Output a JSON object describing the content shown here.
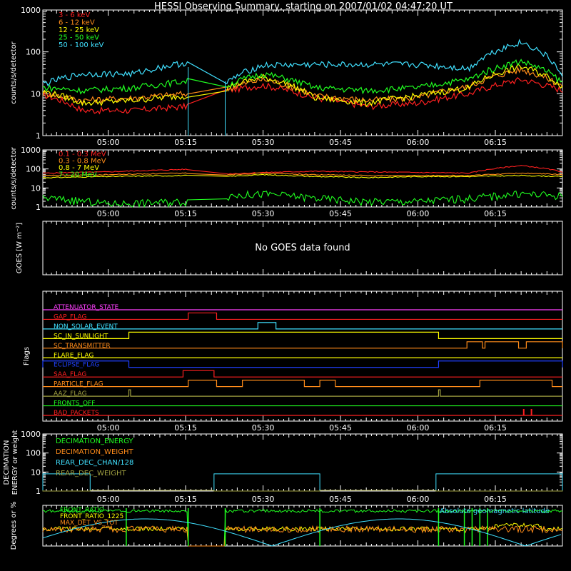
{
  "title": "HESSI Observing Summary, starting on 2007/01/02 04:47:20 UT",
  "time_ticks": [
    "05:00",
    "05:15",
    "05:30",
    "05:45",
    "06:00",
    "06:15"
  ],
  "no_goes_text": "No GOES data found",
  "colors": {
    "red": "#ff2020",
    "orange": "#ff8c1a",
    "yellow": "#ffff00",
    "green": "#20ff20",
    "cyan": "#40e0ff",
    "magenta": "#ff40ff",
    "blue": "#2040ff",
    "olive": "#a0a040",
    "white": "#ffffff"
  },
  "chart_data": [
    {
      "panel": "lightcurve-low",
      "type": "line",
      "ylabel": "counts/s/detector",
      "yscale": "log",
      "ylim": [
        1,
        1000
      ],
      "yticks": [
        "1",
        "10",
        "100",
        "1000"
      ],
      "xlim": [
        "04:47:20",
        "06:28:00"
      ],
      "grid": false,
      "legend": "top-left",
      "series": [
        {
          "name": "3 - 6 keV",
          "color": "#ff2020",
          "points": [
            [
              "04:48",
              9
            ],
            [
              "04:55",
              4
            ],
            [
              "05:05",
              4
            ],
            [
              "05:15",
              5
            ],
            [
              "05:23",
              12
            ],
            [
              "05:30",
              16
            ],
            [
              "05:40",
              8
            ],
            [
              "05:50",
              5
            ],
            [
              "06:00",
              6
            ],
            [
              "06:10",
              10
            ],
            [
              "06:20",
              22
            ],
            [
              "06:28",
              12
            ]
          ]
        },
        {
          "name": "6 - 12 keV",
          "color": "#ff8c1a",
          "points": [
            [
              "04:48",
              10
            ],
            [
              "04:55",
              7
            ],
            [
              "05:05",
              8
            ],
            [
              "05:15",
              10
            ],
            [
              "05:23",
              13
            ],
            [
              "05:30",
              22
            ],
            [
              "05:40",
              9
            ],
            [
              "05:50",
              7
            ],
            [
              "06:00",
              8
            ],
            [
              "06:10",
              15
            ],
            [
              "06:20",
              38
            ],
            [
              "06:28",
              15
            ]
          ]
        },
        {
          "name": "12 - 25 keV",
          "color": "#ffff00",
          "points": [
            [
              "04:48",
              11
            ],
            [
              "04:55",
              6
            ],
            [
              "05:05",
              7
            ],
            [
              "05:15",
              9
            ],
            [
              "05:23",
              14
            ],
            [
              "05:30",
              25
            ],
            [
              "05:40",
              8
            ],
            [
              "05:50",
              6
            ],
            [
              "06:00",
              9
            ],
            [
              "06:10",
              14
            ],
            [
              "06:20",
              45
            ],
            [
              "06:28",
              15
            ]
          ]
        },
        {
          "name": "25 - 50 keV",
          "color": "#20ff20",
          "points": [
            [
              "04:48",
              14
            ],
            [
              "04:55",
              12
            ],
            [
              "05:05",
              14
            ],
            [
              "05:15",
              20
            ],
            [
              "05:23",
              16
            ],
            [
              "05:30",
              30
            ],
            [
              "05:40",
              14
            ],
            [
              "05:50",
              12
            ],
            [
              "06:00",
              14
            ],
            [
              "06:10",
              22
            ],
            [
              "06:20",
              60
            ],
            [
              "06:28",
              18
            ]
          ]
        },
        {
          "name": "50 - 100 keV",
          "color": "#40e0ff",
          "points": [
            [
              "04:48",
              18
            ],
            [
              "04:55",
              30
            ],
            [
              "05:05",
              30
            ],
            [
              "05:15",
              55
            ],
            [
              "05:23",
              18
            ],
            [
              "05:30",
              48
            ],
            [
              "05:40",
              50
            ],
            [
              "05:50",
              50
            ],
            [
              "06:00",
              50
            ],
            [
              "06:10",
              40
            ],
            [
              "06:20",
              170
            ],
            [
              "06:28",
              22
            ]
          ]
        }
      ]
    },
    {
      "panel": "lightcurve-high",
      "type": "line",
      "ylabel": "counts/s/detector",
      "yscale": "log",
      "ylim": [
        1,
        1000
      ],
      "yticks": [
        "1",
        "10",
        "100",
        "1000"
      ],
      "legend": "top-left",
      "series": [
        {
          "name": "0.1 - 0.3 MeV",
          "color": "#ff2020",
          "points": [
            [
              "04:48",
              60
            ],
            [
              "05:00",
              70
            ],
            [
              "05:15",
              95
            ],
            [
              "05:23",
              55
            ],
            [
              "05:30",
              65
            ],
            [
              "05:40",
              75
            ],
            [
              "05:50",
              70
            ],
            [
              "06:00",
              65
            ],
            [
              "06:10",
              60
            ],
            [
              "06:20",
              150
            ],
            [
              "06:28",
              70
            ]
          ]
        },
        {
          "name": "0.3 - 0.8 MeV",
          "color": "#ff8c1a",
          "points": [
            [
              "04:48",
              45
            ],
            [
              "05:00",
              50
            ],
            [
              "05:15",
              60
            ],
            [
              "05:23",
              50
            ],
            [
              "05:30",
              60
            ],
            [
              "05:40",
              50
            ],
            [
              "05:50",
              45
            ],
            [
              "06:00",
              45
            ],
            [
              "06:10",
              45
            ],
            [
              "06:20",
              60
            ],
            [
              "06:28",
              50
            ]
          ]
        },
        {
          "name": "0.8 - 7 MeV",
          "color": "#ffff00",
          "points": [
            [
              "04:48",
              35
            ],
            [
              "05:00",
              40
            ],
            [
              "05:15",
              45
            ],
            [
              "05:23",
              40
            ],
            [
              "05:30",
              50
            ],
            [
              "05:40",
              40
            ],
            [
              "05:50",
              35
            ],
            [
              "06:00",
              40
            ],
            [
              "06:10",
              40
            ],
            [
              "06:20",
              45
            ],
            [
              "06:28",
              40
            ]
          ]
        },
        {
          "name": "7 - 20 MeV",
          "color": "#20ff20",
          "points": [
            [
              "04:48",
              3
            ],
            [
              "05:00",
              1.5
            ],
            [
              "05:15",
              2
            ],
            [
              "05:23",
              4
            ],
            [
              "05:30",
              5
            ],
            [
              "05:40",
              3
            ],
            [
              "05:50",
              2
            ],
            [
              "06:00",
              2
            ],
            [
              "06:10",
              3
            ],
            [
              "06:20",
              5
            ],
            [
              "06:28",
              4
            ]
          ]
        }
      ]
    },
    {
      "panel": "goes",
      "type": "line",
      "ylabel": "GOES [W m⁻²]",
      "series": []
    },
    {
      "panel": "flags",
      "type": "line",
      "ylabel": "Flags",
      "series": [
        {
          "name": "ATTENUATOR_STATE",
          "color": "#ff40ff",
          "segments": []
        },
        {
          "name": "GAP_FLAG",
          "color": "#ff2020",
          "segments": [
            [
              "05:15:30",
              "05:21:00"
            ]
          ]
        },
        {
          "name": "NON_SOLAR_EVENT",
          "color": "#40e0ff",
          "segments": [
            [
              "05:29:00",
              "05:32:30"
            ]
          ]
        },
        {
          "name": "SC_IN_SUNLIGHT",
          "color": "#ffff00",
          "segments": [
            [
              "05:04:00",
              "06:04:00"
            ]
          ]
        },
        {
          "name": "SC_TRANSMITTER",
          "color": "#ff8c1a",
          "segments": [
            [
              "06:09:30",
              "06:12:30"
            ],
            [
              "06:13:00",
              "06:19:30"
            ],
            [
              "06:21:00",
              "06:28:00"
            ]
          ]
        },
        {
          "name": "FLARE_FLAG",
          "color": "#ffff00",
          "segments": []
        },
        {
          "name": "ECLIPSE_FLAG",
          "color": "#2040ff",
          "segments": [
            [
              "04:47:20",
              "05:04:00"
            ],
            [
              "06:04:00",
              "06:28:00"
            ]
          ]
        },
        {
          "name": "SAA_FLAG",
          "color": "#ff2020",
          "segments": [
            [
              "05:14:30",
              "05:20:30"
            ]
          ]
        },
        {
          "name": "PARTICLE_FLAG",
          "color": "#ff8c1a",
          "segments": [
            [
              "05:15:30",
              "05:21:00"
            ],
            [
              "05:26:00",
              "05:38:00"
            ],
            [
              "05:41:00",
              "05:44:00"
            ],
            [
              "06:12:00",
              "06:26:00"
            ]
          ]
        },
        {
          "name": "AAZ_FLAG",
          "color": "#a0a040",
          "segments": [
            [
              "05:04:00",
              "05:04:20"
            ],
            [
              "06:04:00",
              "06:04:20"
            ]
          ]
        },
        {
          "name": "FRONTS_OFF",
          "color": "#20ff20",
          "segments": []
        },
        {
          "name": "BAD_PACKETS",
          "color": "#ff2020",
          "segments": [
            [
              "06:20:30",
              "06:20:40"
            ],
            [
              "06:22:00",
              "06:22:10"
            ]
          ]
        }
      ]
    },
    {
      "panel": "decimation",
      "type": "line",
      "ylabel": "DECIMATION ENERGY or weight",
      "yscale": "log",
      "ylim": [
        1,
        1000
      ],
      "yticks": [
        "1",
        "10",
        "100",
        "1000"
      ],
      "series": [
        {
          "name": "DECIMATION_ENERGY",
          "color": "#20ff20",
          "points": []
        },
        {
          "name": "DECIMATION_WEIGHT",
          "color": "#ff8c1a",
          "points": []
        },
        {
          "name": "REAR_DEC_CHAN/128",
          "color": "#40e0ff",
          "segments": [
            [
              "04:47:20",
              "04:56:30",
              8
            ],
            [
              "05:20:30",
              "05:41:00",
              8
            ],
            [
              "06:03:30",
              "06:28:00",
              8
            ]
          ]
        },
        {
          "name": "REAR_DEC_WEIGHT",
          "color": "#a0a040",
          "segments": [
            [
              "04:47:20",
              "04:56:30",
              1
            ],
            [
              "05:20:30",
              "05:41:00",
              1
            ],
            [
              "06:03:30",
              "06:28:00",
              1
            ]
          ]
        }
      ]
    },
    {
      "panel": "ratios",
      "type": "line",
      "ylabel": "Degrees or %",
      "legend": "top-left",
      "annotation": "Absolute geomagnetic latitude",
      "series": [
        {
          "name": "FRONT_RATIO",
          "color": "#20ff20"
        },
        {
          "name": "FRONT_RATIO_1225",
          "color": "#ffff00"
        },
        {
          "name": "MAX_DET_VS_TOT",
          "color": "#ff8c1a"
        }
      ]
    }
  ]
}
